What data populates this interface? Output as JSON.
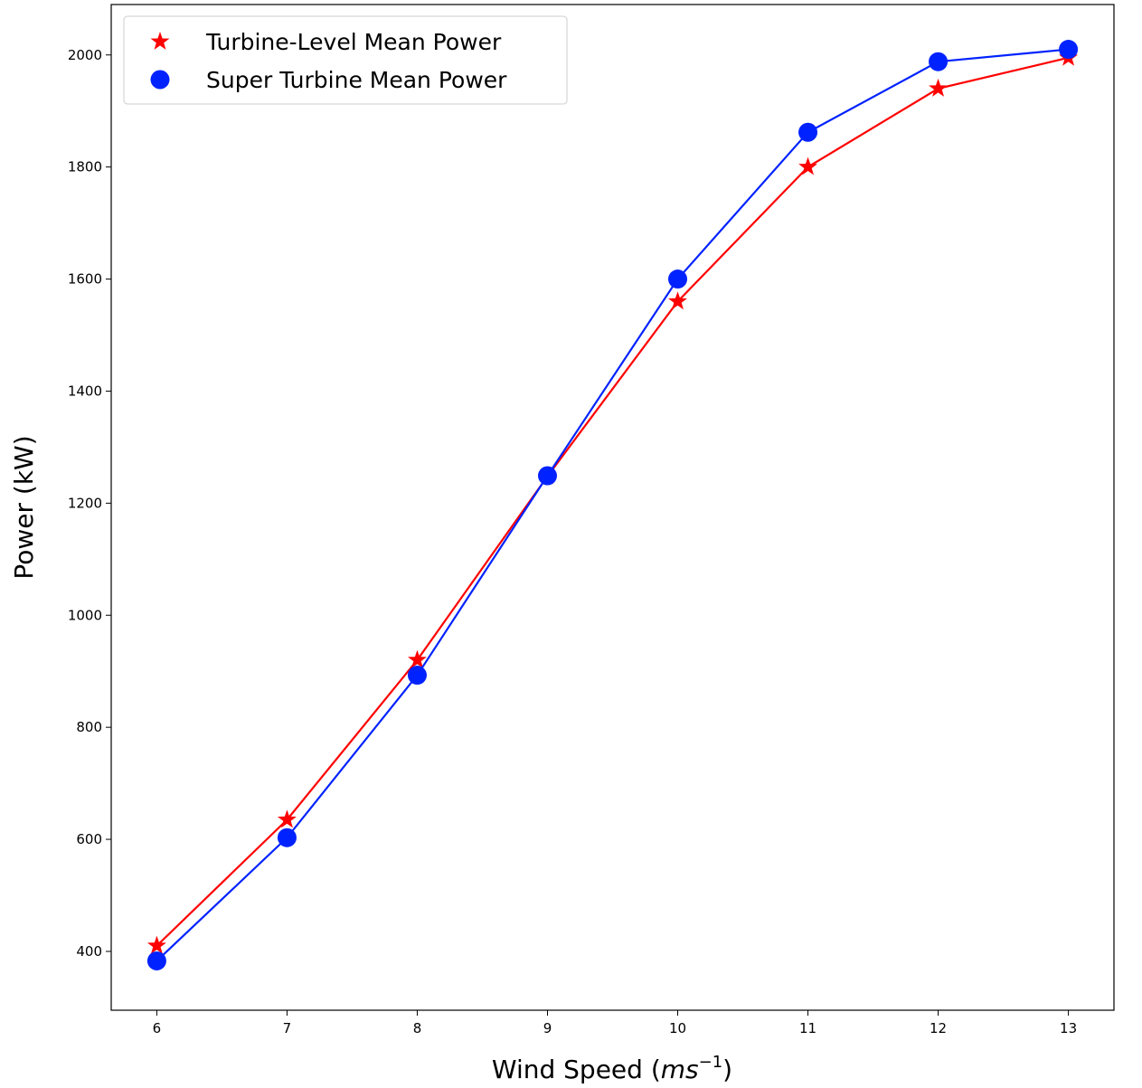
{
  "chart_data": {
    "type": "line",
    "title": "",
    "xlabel": "Wind Speed (",
    "xlabel_math": "ms",
    "xlabel_sup": "−1",
    "xlabel_end": ")",
    "ylabel": "Power (kW)",
    "x": [
      6,
      7,
      8,
      9,
      10,
      11,
      12,
      13
    ],
    "xlim": [
      5.65,
      13.35
    ],
    "ylim": [
      295,
      2090
    ],
    "xticks": [
      6,
      7,
      8,
      9,
      10,
      11,
      12,
      13
    ],
    "yticks": [
      400,
      600,
      800,
      1000,
      1200,
      1400,
      1600,
      1800,
      2000
    ],
    "grid": false,
    "legend_position": "top-left",
    "series": [
      {
        "name": "Turbine-Level Mean Power",
        "marker": "star",
        "color": "#ff0000",
        "values": [
          410,
          635,
          920,
          1248,
          1560,
          1800,
          1940,
          1995
        ]
      },
      {
        "name": "Super Turbine Mean Power",
        "marker": "circle",
        "color": "#0022ff",
        "values": [
          383,
          603,
          893,
          1249,
          1600,
          1862,
          1988,
          2010
        ]
      }
    ]
  }
}
